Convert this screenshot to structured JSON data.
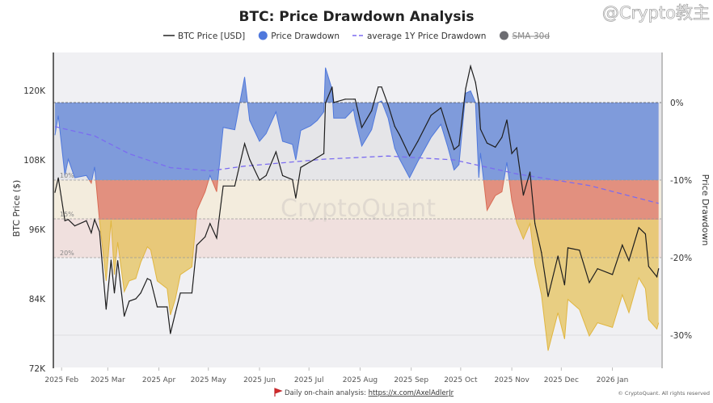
{
  "chart_data": {
    "type": "area",
    "title": "BTC: Price Drawdown Analysis",
    "legend": {
      "placement": "top",
      "items": [
        {
          "label": "BTC Price [USD]",
          "kind": "line",
          "color": "#222222"
        },
        {
          "label": "Price Drawdown",
          "kind": "dot",
          "color": "#4f78dc"
        },
        {
          "label": "average 1Y Price Drawdown",
          "kind": "dash",
          "color": "#7b6cf0"
        },
        {
          "label": "SMA-30d",
          "kind": "dot",
          "color": "#6d6d72",
          "disabled": true
        }
      ]
    },
    "ylabel_left": "BTC Price ($)",
    "ylabel_right": "Price Drawdown",
    "y_left_ticks": [
      "120K",
      "108K",
      "96K",
      "84K",
      "72K"
    ],
    "y_left_values": [
      120,
      108,
      96,
      84,
      72
    ],
    "y_left_range_k": [
      72,
      120
    ],
    "y_right_ticks": [
      "0%",
      "-10%",
      "-20%",
      "-30%"
    ],
    "y_right_values": [
      0,
      -10,
      -20,
      -30
    ],
    "x_ticks": [
      "2025 Feb",
      "2025 Mar",
      "2025 Apr",
      "2025 May",
      "2025 Jun",
      "2025 Jul",
      "2025 Aug",
      "2025 Sep",
      "2025 Oct",
      "2025 Nov",
      "2025 Dec",
      "2026 Jan"
    ],
    "x_tick_dates": [
      "2025-02-01",
      "2025-03-01",
      "2025-04-01",
      "2025-05-01",
      "2025-06-01",
      "2025-07-01",
      "2025-08-01",
      "2025-09-01",
      "2025-10-01",
      "2025-11-01",
      "2025-12-01",
      "2026-01-01"
    ],
    "x_range": [
      "2025-01-27",
      "2026-01-30"
    ],
    "bands": [
      {
        "label": "10%",
        "from": 0,
        "to": -10,
        "fill_color": "#7f9bdb",
        "bg_color": "#e5e5e8"
      },
      {
        "label": "15%",
        "from": -10,
        "to": -15,
        "fill_color": "#e2907f",
        "bg_color": "#f3ecdd"
      },
      {
        "label": "20%",
        "from": -15,
        "to": -20,
        "fill_color": "#e6c06a",
        "bg_color": "#f0e0de"
      }
    ],
    "series_columns": [
      "date",
      "btc_price_k",
      "drawdown_pct"
    ],
    "series": [
      [
        "2025-01-28",
        102.4,
        -4.2
      ],
      [
        "2025-01-30",
        104.9,
        -1.7
      ],
      [
        "2025-02-03",
        97.5,
        -9.4
      ],
      [
        "2025-02-05",
        97.7,
        -7.3
      ],
      [
        "2025-02-09",
        96.6,
        -9.7
      ],
      [
        "2025-02-16",
        97.5,
        -9.4
      ],
      [
        "2025-02-19",
        95.4,
        -10.4
      ],
      [
        "2025-02-21",
        97.7,
        -8.3
      ],
      [
        "2025-02-24",
        95.6,
        -15.2
      ],
      [
        "2025-02-28",
        82.2,
        -23.0
      ],
      [
        "2025-03-03",
        90.7,
        -15.2
      ],
      [
        "2025-03-05",
        85.0,
        -22.2
      ],
      [
        "2025-03-07",
        90.6,
        -18.0
      ],
      [
        "2025-03-11",
        81.0,
        -24.4
      ],
      [
        "2025-03-14",
        83.6,
        -23.0
      ],
      [
        "2025-03-18",
        84.0,
        -22.7
      ],
      [
        "2025-03-21",
        85.0,
        -20.6
      ],
      [
        "2025-03-25",
        87.5,
        -18.6
      ],
      [
        "2025-03-27",
        87.2,
        -19.0
      ],
      [
        "2025-03-31",
        82.6,
        -23.0
      ],
      [
        "2025-04-06",
        82.6,
        -24.0
      ],
      [
        "2025-04-08",
        78.0,
        -27.4
      ],
      [
        "2025-04-11",
        81.6,
        -25.3
      ],
      [
        "2025-04-14",
        85.0,
        -22.2
      ],
      [
        "2025-04-21",
        85.0,
        -21.2
      ],
      [
        "2025-04-24",
        93.3,
        -13.9
      ],
      [
        "2025-04-29",
        94.7,
        -11.5
      ],
      [
        "2025-05-02",
        97.0,
        -9.4
      ],
      [
        "2025-05-06",
        94.5,
        -11.5
      ],
      [
        "2025-05-10",
        103.5,
        -3.2
      ],
      [
        "2025-05-17",
        103.5,
        -3.5
      ],
      [
        "2025-05-23",
        110.8,
        3.3
      ],
      [
        "2025-05-26",
        108.1,
        -2.3
      ],
      [
        "2025-06-01",
        104.5,
        -5.0
      ],
      [
        "2025-06-05",
        105.3,
        -4.0
      ],
      [
        "2025-06-11",
        109.4,
        -1.2
      ],
      [
        "2025-06-15",
        105.3,
        -5.0
      ],
      [
        "2025-06-21",
        104.6,
        -5.4
      ],
      [
        "2025-06-23",
        101.4,
        -7.4
      ],
      [
        "2025-06-26",
        106.7,
        -3.6
      ],
      [
        "2025-07-02",
        107.7,
        -3.0
      ],
      [
        "2025-07-06",
        108.4,
        -2.3
      ],
      [
        "2025-07-10",
        109.1,
        -1.2
      ],
      [
        "2025-07-11",
        117.8,
        4.5
      ],
      [
        "2025-07-15",
        120.6,
        1.7
      ],
      [
        "2025-07-16",
        117.9,
        -2.0
      ],
      [
        "2025-07-23",
        118.5,
        -2.0
      ],
      [
        "2025-07-28",
        118.5,
        -0.9
      ],
      [
        "2025-07-29",
        118.5,
        -2.1
      ],
      [
        "2025-08-02",
        113.6,
        -5.6
      ],
      [
        "2025-08-08",
        116.5,
        -3.5
      ],
      [
        "2025-08-12",
        120.6,
        0.0
      ],
      [
        "2025-08-14",
        120.6,
        0.2
      ],
      [
        "2025-08-18",
        117.5,
        -2.0
      ],
      [
        "2025-08-22",
        113.8,
        -5.9
      ],
      [
        "2025-08-25",
        112.3,
        -7.3
      ],
      [
        "2025-08-31",
        108.7,
        -9.7
      ],
      [
        "2025-09-05",
        111.2,
        -7.6
      ],
      [
        "2025-09-13",
        115.7,
        -4.5
      ],
      [
        "2025-09-19",
        117.0,
        -2.8
      ],
      [
        "2025-09-23",
        113.3,
        -5.6
      ],
      [
        "2025-09-27",
        109.8,
        -8.7
      ],
      [
        "2025-09-30",
        110.5,
        -8.0
      ],
      [
        "2025-10-04",
        120.3,
        1.2
      ],
      [
        "2025-10-07",
        124.2,
        1.5
      ],
      [
        "2025-10-10",
        121.4,
        0.0
      ],
      [
        "2025-10-12",
        117.9,
        -9.7
      ],
      [
        "2025-10-13",
        113.3,
        -6.5
      ],
      [
        "2025-10-17",
        110.9,
        -13.9
      ],
      [
        "2025-10-22",
        110.2,
        -12.0
      ],
      [
        "2025-10-26",
        111.9,
        -11.5
      ],
      [
        "2025-10-29",
        114.9,
        -7.7
      ],
      [
        "2025-11-01",
        109.1,
        -12.6
      ],
      [
        "2025-11-04",
        110.1,
        -15.5
      ],
      [
        "2025-11-08",
        101.9,
        -17.6
      ],
      [
        "2025-11-12",
        105.9,
        -15.6
      ],
      [
        "2025-11-15",
        97.0,
        -20.8
      ],
      [
        "2025-11-19",
        92.0,
        -24.8
      ],
      [
        "2025-11-23",
        84.4,
        -32.0
      ],
      [
        "2025-11-29",
        91.4,
        -27.1
      ],
      [
        "2025-12-03",
        86.4,
        -30.5
      ],
      [
        "2025-12-05",
        92.8,
        -25.4
      ],
      [
        "2025-12-12",
        92.4,
        -26.7
      ],
      [
        "2025-12-18",
        86.8,
        -30.1
      ],
      [
        "2025-12-23",
        89.2,
        -28.4
      ],
      [
        "2026-01-01",
        88.2,
        -29.0
      ],
      [
        "2026-01-07",
        93.3,
        -24.8
      ],
      [
        "2026-01-11",
        90.6,
        -27.1
      ],
      [
        "2026-01-17",
        96.3,
        -22.6
      ],
      [
        "2026-01-21",
        95.2,
        -24.0
      ],
      [
        "2026-01-23",
        89.6,
        -28.0
      ],
      [
        "2026-01-28",
        87.8,
        -29.2
      ],
      [
        "2026-01-29",
        89.2,
        -28.4
      ]
    ],
    "avg_1y_drawdown": [
      [
        "2025-01-28",
        -3.1
      ],
      [
        "2025-02-21",
        -4.3
      ],
      [
        "2025-03-14",
        -6.6
      ],
      [
        "2025-04-08",
        -8.4
      ],
      [
        "2025-05-02",
        -8.8
      ],
      [
        "2025-05-23",
        -8.2
      ],
      [
        "2025-07-10",
        -7.3
      ],
      [
        "2025-08-18",
        -6.9
      ],
      [
        "2025-09-27",
        -7.4
      ],
      [
        "2025-11-04",
        -9.2
      ],
      [
        "2025-12-18",
        -10.7
      ],
      [
        "2026-01-29",
        -13.0
      ]
    ]
  },
  "watermark": "CryptoQuant",
  "overlay_watermark": "@Crypto教主",
  "footer": {
    "prefix": "Daily on-chain analysis: ",
    "link": "https://x.com/AxelAdlerJr",
    "copyright": "© CryptoQuant. All rights reserved"
  }
}
